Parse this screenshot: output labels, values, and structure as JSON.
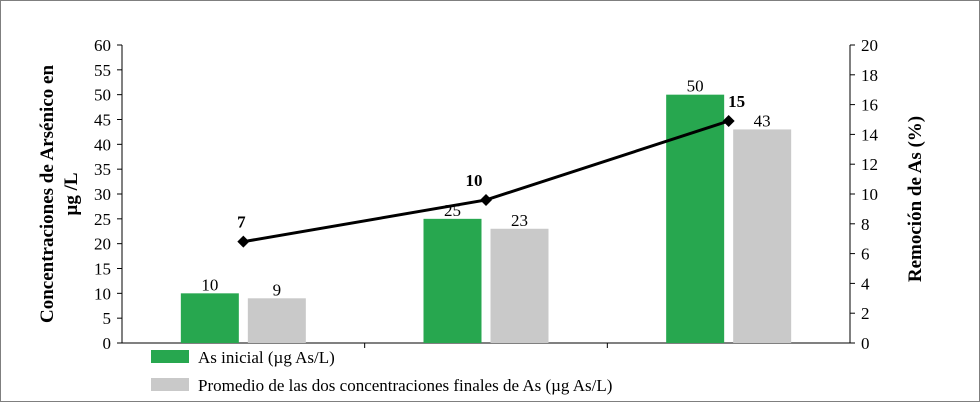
{
  "chart_data": {
    "type": "bar",
    "categories": [
      "",
      "",
      ""
    ],
    "series": [
      {
        "name": "As inicial (µg As/L)",
        "values": [
          10,
          25,
          50
        ],
        "color": "#27a74f",
        "axis": "left"
      },
      {
        "name": "Promedio de las dos concentraciones finales de As  (µg As/L)",
        "values": [
          9,
          23,
          43
        ],
        "color": "#c9c9c9",
        "axis": "left"
      }
    ],
    "line_series": {
      "values": [
        7,
        10,
        15
      ],
      "point_y": [
        6.8,
        9.6,
        14.9
      ],
      "color": "#000000",
      "axis": "right"
    },
    "ylabel": "Concentraciones de Arsénico en µg /L",
    "ylabel_lines": [
      "Concentraciones de Arsénico en",
      "µg /L"
    ],
    "y2label": "Remoción de As (%)",
    "ylim": [
      0,
      60
    ],
    "y2lim": [
      0,
      20
    ],
    "yticks": [
      0,
      5,
      10,
      15,
      20,
      25,
      30,
      35,
      40,
      45,
      50,
      55,
      60
    ],
    "y2ticks": [
      0,
      2,
      4,
      6,
      8,
      10,
      12,
      14,
      16,
      18,
      20
    ],
    "grid": false,
    "legend_position": "bottom-left"
  }
}
